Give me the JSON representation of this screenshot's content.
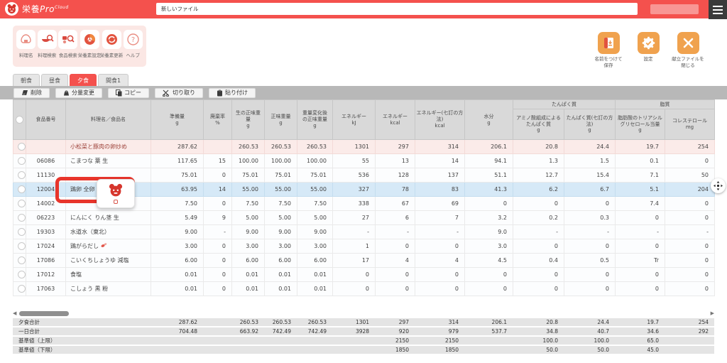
{
  "app": {
    "brand_jp": "栄養",
    "brand_en": "Pro",
    "brand_sup": "Cloud",
    "file_input_value": "新しいファイル",
    "menu_icon": "hamburger-icon",
    "colors": {
      "accent_red": "#f4514d",
      "accent_orange": "#f0a24e",
      "selected_row_blue": "#d6e9f7",
      "dish_row_pink": "#fbebe9",
      "highlight_border_red": "#e8352b"
    }
  },
  "quick_tools": [
    {
      "label": "料理名",
      "icon": "onigiri-icon"
    },
    {
      "label": "料理検索",
      "icon": "dish-search-icon"
    },
    {
      "label": "食品検索",
      "icon": "food-search-icon"
    },
    {
      "label": "栄養素設定",
      "icon": "nutrient-settings-icon"
    },
    {
      "label": "栄養素更新",
      "icon": "nutrient-update-icon"
    },
    {
      "label": "ヘルプ",
      "icon": "help-icon"
    }
  ],
  "file_actions": [
    {
      "label": "名前をつけて\n保存",
      "icon": "save-as-icon"
    },
    {
      "label": "設定",
      "icon": "settings-icon"
    },
    {
      "label": "献立ファイルを\n閉じる",
      "icon": "close-file-icon"
    }
  ],
  "tabs": [
    {
      "label": "朝食",
      "active": false
    },
    {
      "label": "昼食",
      "active": false
    },
    {
      "label": "夕食",
      "active": true
    },
    {
      "label": "間食1",
      "active": false
    }
  ],
  "edit_actions": [
    {
      "label": "削除",
      "icon": "delete-icon"
    },
    {
      "label": "分量変更",
      "icon": "portion-icon"
    },
    {
      "label": "コピー",
      "icon": "copy-icon"
    },
    {
      "label": "切り取り",
      "icon": "cut-icon"
    },
    {
      "label": "貼り付け",
      "icon": "paste-icon"
    }
  ],
  "table": {
    "columns_main": [
      "食品番号",
      "料理名／食品名",
      "準備量\ng",
      "廃棄率\n%",
      "生の正味重\n量\ng",
      "正味重量\ng",
      "重量変化後\nの正味重量\ng",
      "エネルギー\nkJ",
      "エネルギー\nkcal",
      "エネルギー(七訂の方\n法)\nkcal",
      "水分\ng"
    ],
    "group_protein": {
      "label": "たんぱく質",
      "columns": [
        "アミノ酸組成による\nたんぱく質\ng",
        "たんぱく質(七訂の方\n法)\ng"
      ]
    },
    "group_fat": {
      "label": "脂質",
      "columns": [
        "脂肪酸のトリアシル\nグリセロール当量\ng",
        "コレステロール\nmg"
      ]
    },
    "rows": [
      {
        "num": "",
        "name": "小松菜と豚肉の卵炒め",
        "style": "dish",
        "icon": false,
        "vals": [
          "287.62",
          "",
          "260.53",
          "260.53",
          "260.53",
          "1301",
          "297",
          "314",
          "206.1",
          "20.8",
          "24.4",
          "19.7",
          "254"
        ]
      },
      {
        "num": "06086",
        "name": "こまつな 葉 生",
        "style": "",
        "icon": false,
        "vals": [
          "117.65",
          "15",
          "100.00",
          "100.00",
          "100.00",
          "55",
          "13",
          "14",
          "94.1",
          "1.3",
          "1.5",
          "0.1",
          "0"
        ]
      },
      {
        "num": "11130",
        "name": "",
        "style": "",
        "icon": false,
        "vals": [
          "75.01",
          "0",
          "75.01",
          "75.01",
          "75.01",
          "536",
          "128",
          "137",
          "51.1",
          "12.7",
          "15.4",
          "7.1",
          "50"
        ]
      },
      {
        "num": "12004",
        "name": "鶏卵 全卵 生",
        "style": "selected",
        "icon": true,
        "vals": [
          "63.95",
          "14",
          "55.00",
          "55.00",
          "55.00",
          "327",
          "78",
          "83",
          "41.3",
          "6.2",
          "6.7",
          "5.1",
          "204"
        ]
      },
      {
        "num": "14002",
        "name": "",
        "style": "",
        "icon": false,
        "vals": [
          "7.50",
          "0",
          "7.50",
          "7.50",
          "7.50",
          "338",
          "67",
          "69",
          "0",
          "0",
          "0",
          "7.4",
          "0"
        ]
      },
      {
        "num": "06223",
        "name": "にんにく りん茎 生",
        "style": "",
        "icon": false,
        "vals": [
          "5.49",
          "9",
          "5.00",
          "5.00",
          "5.00",
          "27",
          "6",
          "7",
          "3.2",
          "0.2",
          "0.3",
          "0",
          "0"
        ]
      },
      {
        "num": "19303",
        "name": "水道水（東北）",
        "style": "",
        "icon": false,
        "vals": [
          "9.00",
          "-",
          "9.00",
          "9.00",
          "9.00",
          "-",
          "-",
          "-",
          "9.0",
          "-",
          "-",
          "-",
          "-"
        ]
      },
      {
        "num": "17024",
        "name": "鶏がらだし",
        "style": "",
        "icon": true,
        "vals": [
          "3.00",
          "0",
          "3.00",
          "3.00",
          "3.00",
          "1",
          "0",
          "0",
          "3.0",
          "0",
          "0",
          "0",
          "0"
        ]
      },
      {
        "num": "17086",
        "name": "こいくちしょうゆ 減塩",
        "style": "",
        "icon": false,
        "vals": [
          "6.00",
          "0",
          "6.00",
          "6.00",
          "6.00",
          "17",
          "4",
          "4",
          "4.5",
          "0.4",
          "0.5",
          "Tr",
          "0"
        ]
      },
      {
        "num": "17012",
        "name": "食塩",
        "style": "",
        "icon": false,
        "vals": [
          "0.01",
          "0",
          "0.01",
          "0.01",
          "0.01",
          "0",
          "0",
          "0",
          "0",
          "0",
          "0",
          "0",
          "0"
        ]
      },
      {
        "num": "17063",
        "name": "こしょう 黒 粉",
        "style": "",
        "icon": false,
        "vals": [
          "0.01",
          "0",
          "0.01",
          "0.01",
          "0.01",
          "0",
          "0",
          "0",
          "0",
          "0",
          "0",
          "0",
          "0"
        ]
      }
    ],
    "summary": [
      {
        "label": "夕食合計",
        "vals": [
          "287.62",
          "",
          "260.53",
          "260.53",
          "260.53",
          "1301",
          "297",
          "314",
          "206.1",
          "20.8",
          "24.4",
          "19.7",
          "254"
        ]
      },
      {
        "label": "一日合計",
        "vals": [
          "704.48",
          "",
          "663.92",
          "742.49",
          "742.49",
          "3928",
          "920",
          "979",
          "537.7",
          "34.8",
          "40.7",
          "34.6",
          "292"
        ]
      },
      {
        "label": "基準値（上限）",
        "vals": [
          "",
          "",
          "",
          "",
          "",
          "",
          "2150",
          "2150",
          "",
          "100.0",
          "100.0",
          "65.0",
          ""
        ]
      },
      {
        "label": "基準値（下限）",
        "vals": [
          "",
          "",
          "",
          "",
          "",
          "",
          "1850",
          "1850",
          "",
          "50.0",
          "50.0",
          "45.0",
          ""
        ]
      }
    ]
  }
}
